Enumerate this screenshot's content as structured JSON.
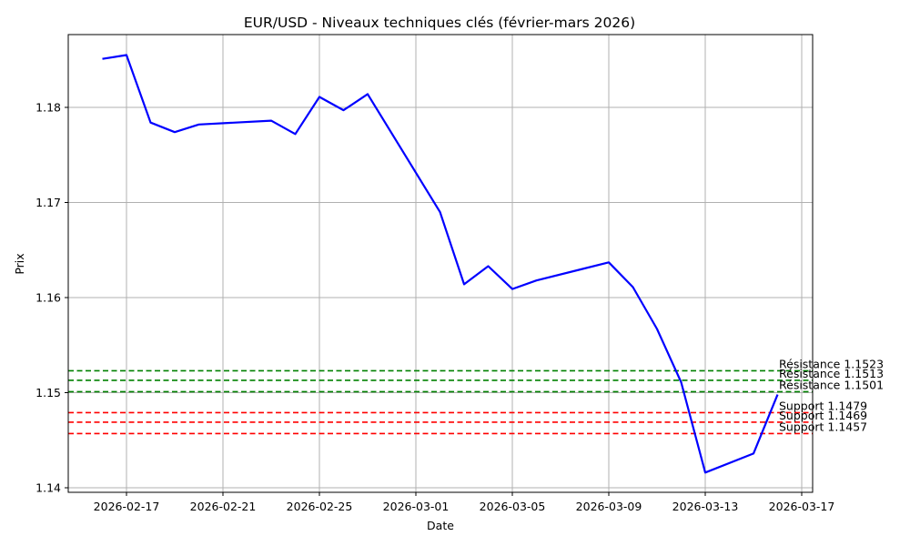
{
  "chart_data": {
    "type": "line",
    "title": "EUR/USD - Niveaux techniques clés (février-mars 2026)",
    "xlabel": "Date",
    "ylabel": "Prix",
    "ylim": [
      1.1395,
      1.1877
    ],
    "xlim": [
      "2026-02-15",
      "2026-03-17"
    ],
    "grid": true,
    "x_ticks": [
      "2026-02-17",
      "2026-02-21",
      "2026-02-25",
      "2026-03-01",
      "2026-03-05",
      "2026-03-09",
      "2026-03-13",
      "2026-03-17"
    ],
    "y_ticks": [
      1.14,
      1.15,
      1.16,
      1.17,
      1.18
    ],
    "y_tick_labels": [
      "1.14",
      "1.15",
      "1.16",
      "1.17",
      "1.18"
    ],
    "series": [
      {
        "name": "EUR/USD",
        "color": "#0000ff",
        "x": [
          "2026-02-16",
          "2026-02-17",
          "2026-02-18",
          "2026-02-19",
          "2026-02-20",
          "2026-02-23",
          "2026-02-24",
          "2026-02-25",
          "2026-02-26",
          "2026-02-27",
          "2026-03-02",
          "2026-03-03",
          "2026-03-04",
          "2026-03-05",
          "2026-03-06",
          "2026-03-09",
          "2026-03-10",
          "2026-03-11",
          "2026-03-12",
          "2026-03-13",
          "2026-03-15",
          "2026-03-16"
        ],
        "values": [
          1.1851,
          1.1855,
          1.1784,
          1.1774,
          1.1782,
          1.1786,
          1.1772,
          1.1811,
          1.1797,
          1.1814,
          1.169,
          1.1614,
          1.1633,
          1.1609,
          1.1618,
          1.1637,
          1.1611,
          1.1567,
          1.1511,
          1.1416,
          1.1436,
          1.1498
        ]
      }
    ],
    "horizontal_lines": [
      {
        "label": "Résistance 1.1523",
        "value": 1.1523,
        "color": "#008000",
        "style": "dashed"
      },
      {
        "label": "Résistance 1.1513",
        "value": 1.1513,
        "color": "#008000",
        "style": "dashed"
      },
      {
        "label": "Résistance 1.1501",
        "value": 1.1501,
        "color": "#008000",
        "style": "dashed"
      },
      {
        "label": "Support 1.1479",
        "value": 1.1479,
        "color": "#ff0000",
        "style": "dashed"
      },
      {
        "label": "Support 1.1469",
        "value": 1.1469,
        "color": "#ff0000",
        "style": "dashed"
      },
      {
        "label": "Support 1.1457",
        "value": 1.1457,
        "color": "#ff0000",
        "style": "dashed"
      }
    ]
  },
  "colors": {
    "line": "#0000ff",
    "resistance": "#008000",
    "support": "#ff0000",
    "grid": "#b0b0b0",
    "axes": "#000000"
  }
}
